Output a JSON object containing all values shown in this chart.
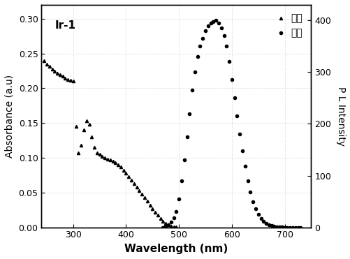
{
  "title_label": "Ir-1",
  "xlabel": "Wavelength (nm)",
  "ylabel_left": "Absorbance (a.u)",
  "ylabel_right": "P L Intensity",
  "xlim": [
    240,
    750
  ],
  "ylim_left": [
    0,
    0.32
  ],
  "ylim_right": [
    0,
    430
  ],
  "yticks_left": [
    0.0,
    0.05,
    0.1,
    0.15,
    0.2,
    0.25,
    0.3
  ],
  "yticks_right": [
    0,
    100,
    200,
    300,
    400
  ],
  "xticks": [
    300,
    400,
    500,
    600,
    700
  ],
  "legend_labels": [
    "紫外",
    "荧光"
  ],
  "line_color": "#000000",
  "bg_color": "#ffffff",
  "uv_abs_data": {
    "x": [
      245,
      250,
      255,
      260,
      265,
      270,
      275,
      280,
      285,
      290,
      295,
      300,
      305,
      310,
      315,
      320,
      325,
      330,
      335,
      340,
      345,
      350,
      355,
      360,
      365,
      370,
      375,
      380,
      385,
      390,
      395,
      400,
      405,
      410,
      415,
      420,
      425,
      430,
      435,
      440,
      445,
      450,
      455,
      460,
      465,
      470,
      475,
      480,
      485,
      490,
      495
    ],
    "y": [
      0.24,
      0.235,
      0.232,
      0.228,
      0.225,
      0.222,
      0.22,
      0.218,
      0.215,
      0.213,
      0.212,
      0.21,
      0.145,
      0.107,
      0.118,
      0.14,
      0.153,
      0.148,
      0.13,
      0.115,
      0.107,
      0.105,
      0.102,
      0.1,
      0.098,
      0.097,
      0.095,
      0.093,
      0.09,
      0.087,
      0.082,
      0.078,
      0.073,
      0.068,
      0.063,
      0.058,
      0.053,
      0.048,
      0.043,
      0.038,
      0.032,
      0.027,
      0.022,
      0.018,
      0.013,
      0.009,
      0.006,
      0.004,
      0.002,
      0.001,
      0.001
    ]
  },
  "pl_data": {
    "x": [
      470,
      475,
      480,
      485,
      490,
      495,
      500,
      505,
      510,
      515,
      520,
      525,
      530,
      535,
      540,
      545,
      550,
      555,
      560,
      565,
      570,
      575,
      580,
      585,
      590,
      595,
      600,
      605,
      610,
      615,
      620,
      625,
      630,
      635,
      640,
      645,
      650,
      655,
      660,
      665,
      670,
      675,
      680,
      685,
      690,
      695,
      700,
      705,
      710,
      715,
      720,
      725,
      730
    ],
    "y": [
      0,
      2,
      5,
      10,
      18,
      30,
      55,
      90,
      130,
      175,
      220,
      265,
      300,
      330,
      350,
      365,
      380,
      390,
      395,
      398,
      400,
      395,
      385,
      370,
      350,
      320,
      285,
      250,
      215,
      180,
      148,
      118,
      90,
      68,
      50,
      36,
      25,
      17,
      12,
      8,
      5,
      3,
      2,
      1,
      0.5,
      0.2,
      0.1,
      0,
      0,
      0,
      0,
      0,
      0
    ]
  }
}
